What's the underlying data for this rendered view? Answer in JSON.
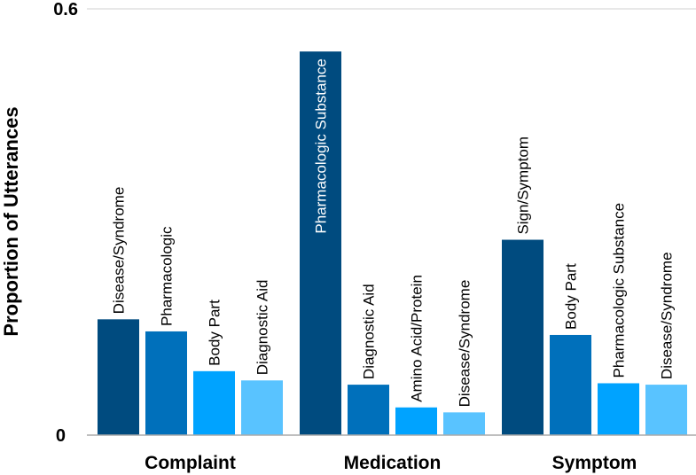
{
  "chart_data": {
    "type": "bar",
    "title": "",
    "xlabel": "",
    "ylabel": "Proportion of Utterances",
    "ylim": [
      0,
      0.6
    ],
    "yticks": [
      {
        "value": 0,
        "label": "0"
      },
      {
        "value": 0.6,
        "label": "0.6"
      }
    ],
    "grid": true,
    "legend": "none",
    "groups": [
      {
        "name": "Complaint",
        "bars": [
          {
            "label": "Disease/Syndrome",
            "value": 0.163,
            "color": "#004B7F"
          },
          {
            "label": "Pharmacologic",
            "value": 0.146,
            "color": "#0070BB"
          },
          {
            "label": "Body Part",
            "value": 0.09,
            "color": "#00A3FF"
          },
          {
            "label": "Diagnostic Aid",
            "value": 0.077,
            "color": "#59C3FF"
          }
        ]
      },
      {
        "name": "Medication",
        "bars": [
          {
            "label": "Pharmacologic Substance",
            "value": 0.54,
            "color": "#004B7F"
          },
          {
            "label": "Diagnostic Aid",
            "value": 0.071,
            "color": "#0070BB"
          },
          {
            "label": "Amino Acid/Protein",
            "value": 0.039,
            "color": "#00A3FF"
          },
          {
            "label": "Disease/Syndrome",
            "value": 0.032,
            "color": "#59C3FF"
          }
        ]
      },
      {
        "name": "Symptom",
        "bars": [
          {
            "label": "Sign/Symptom",
            "value": 0.275,
            "color": "#004B7F"
          },
          {
            "label": "Body Part",
            "value": 0.141,
            "color": "#0070BB"
          },
          {
            "label": "Pharmacologic Substance",
            "value": 0.073,
            "color": "#00A3FF"
          },
          {
            "label": "Disease/Syndrome",
            "value": 0.071,
            "color": "#59C3FF"
          }
        ]
      }
    ]
  }
}
